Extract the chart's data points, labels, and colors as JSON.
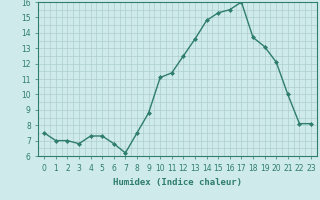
{
  "x": [
    0,
    1,
    2,
    3,
    4,
    5,
    6,
    7,
    8,
    9,
    10,
    11,
    12,
    13,
    14,
    15,
    16,
    17,
    18,
    19,
    20,
    21,
    22,
    23
  ],
  "y": [
    7.5,
    7.0,
    7.0,
    6.8,
    7.3,
    7.3,
    6.8,
    6.2,
    7.5,
    8.8,
    11.1,
    11.4,
    12.5,
    13.6,
    14.8,
    15.3,
    15.5,
    16.0,
    13.7,
    13.1,
    12.1,
    10.0,
    8.1,
    8.1
  ],
  "line_color": "#2e7d6e",
  "marker": "D",
  "marker_size": 2.0,
  "bg_color": "#ceeaea",
  "grid_color": "#aecece",
  "xlabel": "Humidex (Indice chaleur)",
  "ylim": [
    6,
    16
  ],
  "xlim": [
    -0.5,
    23.5
  ],
  "yticks": [
    6,
    7,
    8,
    9,
    10,
    11,
    12,
    13,
    14,
    15,
    16
  ],
  "xticks": [
    0,
    1,
    2,
    3,
    4,
    5,
    6,
    7,
    8,
    9,
    10,
    11,
    12,
    13,
    14,
    15,
    16,
    17,
    18,
    19,
    20,
    21,
    22,
    23
  ],
  "xlabel_fontsize": 6.5,
  "tick_fontsize": 5.5,
  "line_width": 1.0
}
